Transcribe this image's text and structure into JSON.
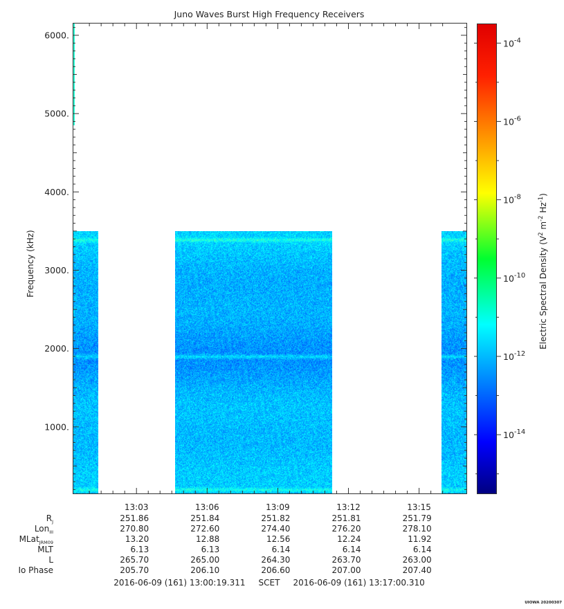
{
  "chart_data": {
    "type": "heatmap",
    "title": "Juno Waves Burst High Frequency Receivers",
    "ylabel": "Frequency (kHz)",
    "ylim": [
      150,
      6150
    ],
    "y_ticks": [
      {
        "value": 1000,
        "label": "1000."
      },
      {
        "value": 2000,
        "label": "2000."
      },
      {
        "value": 3000,
        "label": "3000."
      },
      {
        "value": 4000,
        "label": "4000."
      },
      {
        "value": 5000,
        "label": "5000."
      },
      {
        "value": 6000,
        "label": "6000."
      }
    ],
    "x_range_minutes": [
      0.32,
      17.01
    ],
    "x_ticks": [
      {
        "minute": 3,
        "label": "13:03"
      },
      {
        "minute": 6,
        "label": "13:06"
      },
      {
        "minute": 9,
        "label": "13:09"
      },
      {
        "minute": 12,
        "label": "13:12"
      },
      {
        "minute": 15,
        "label": "13:15"
      }
    ],
    "data_blocks": [
      {
        "start_minute": 0.32,
        "end_minute": 1.38,
        "fmax": 3500
      },
      {
        "start_minute": 4.65,
        "end_minute": 11.3,
        "fmax": 3500
      },
      {
        "start_minute": 15.95,
        "end_minute": 17.01,
        "fmax": 3500
      }
    ],
    "emission_lines_khz": [
      200,
      1900,
      3390
    ],
    "early_sliver": {
      "start_minute": 0.32,
      "end_minute": 0.36,
      "fmin": 4850,
      "fmax": 6150
    },
    "background_log_density": -11.9,
    "colorbar": {
      "label": "Electric Spectral Density (V² m⁻² Hz⁻¹)",
      "label_base": "Electric Spectral Density (V",
      "label_sup1": "2",
      "label_mid": " m",
      "label_sup2": "-2",
      "label_mid2": " Hz",
      "label_sup3": "-1",
      "label_end": ")",
      "log_min": -15.5,
      "log_max": -3.5,
      "ticks": [
        {
          "exp": -4,
          "base": "10",
          "sup": "-4"
        },
        {
          "exp": -6,
          "base": "10",
          "sup": "-6"
        },
        {
          "exp": -8,
          "base": "10",
          "sup": "-8"
        },
        {
          "exp": -10,
          "base": "10",
          "sup": "-10"
        },
        {
          "exp": -12,
          "base": "10",
          "sup": "-12"
        },
        {
          "exp": -14,
          "base": "10",
          "sup": "-14"
        }
      ]
    },
    "ephemeris": {
      "rows": [
        {
          "label": "R",
          "sub": "J",
          "values": [
            "251.86",
            "251.84",
            "251.82",
            "251.81",
            "251.79"
          ]
        },
        {
          "label": "Lon",
          "sub": "III",
          "values": [
            "270.80",
            "272.60",
            "274.40",
            "276.20",
            "278.10"
          ]
        },
        {
          "label": "MLat",
          "sub": "JRM09",
          "values": [
            "13.20",
            "12.88",
            "12.56",
            "12.24",
            "11.92"
          ]
        },
        {
          "label": "MLT",
          "sub": "",
          "values": [
            "6.13",
            "6.13",
            "6.14",
            "6.14",
            "6.14"
          ]
        },
        {
          "label": "L",
          "sub": "",
          "values": [
            "265.70",
            "265.00",
            "264.30",
            "263.70",
            "263.00"
          ]
        },
        {
          "label": "Io Phase",
          "sub": "",
          "values": [
            "205.70",
            "206.10",
            "206.60",
            "207.00",
            "207.40"
          ]
        }
      ]
    },
    "scet_line": "2016-06-09 (161) 13:00:19.311     SCET     2016-06-09 (161) 13:17:00.310",
    "footer_tag": "UIOWA 20200307"
  }
}
